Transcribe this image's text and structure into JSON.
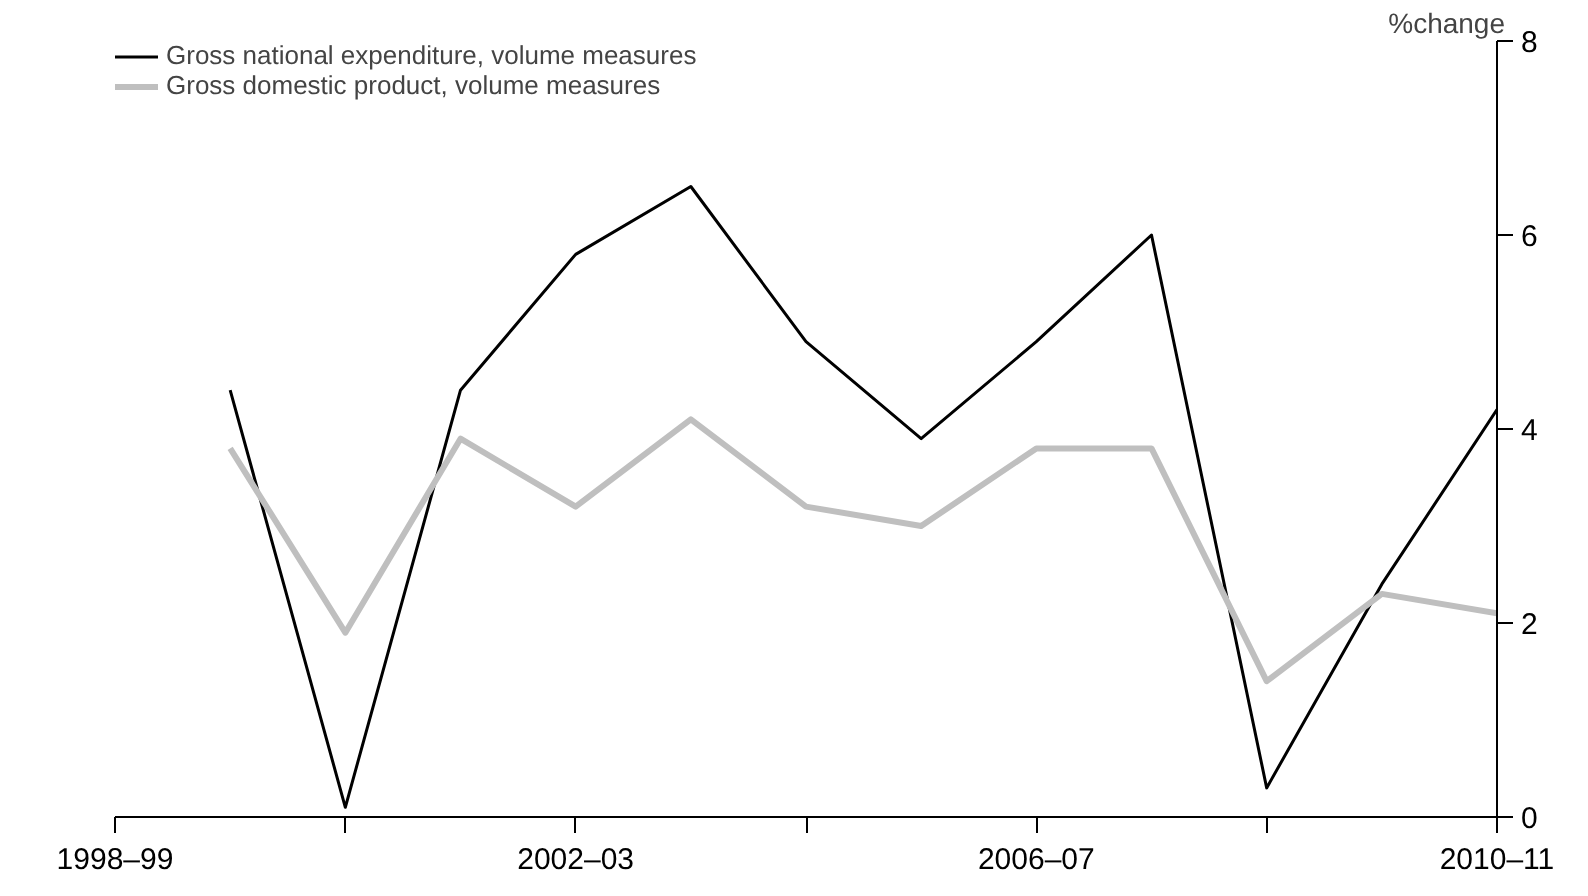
{
  "chart_data": {
    "type": "line",
    "ylabel": "%change",
    "categories": [
      "1998–99",
      null,
      null,
      null,
      "2002–03",
      null,
      null,
      null,
      "2006–07",
      null,
      null,
      null,
      "2010–11"
    ],
    "ylim": [
      0,
      8
    ],
    "yticks": [
      0,
      2,
      4,
      6,
      8
    ],
    "series": [
      {
        "name": "Gross national expenditure, volume measures",
        "color": "#000000",
        "values": [
          null,
          4.4,
          0.1,
          4.4,
          5.8,
          6.5,
          4.9,
          3.9,
          4.9,
          6.0,
          0.3,
          2.4,
          4.2
        ]
      },
      {
        "name": "Gross domestic product, volume measures",
        "color": "#bfbfbf",
        "values": [
          null,
          3.8,
          1.9,
          3.9,
          3.2,
          4.1,
          3.2,
          3.0,
          3.8,
          3.8,
          1.4,
          2.3,
          2.1
        ]
      }
    ],
    "legend": "top left"
  }
}
